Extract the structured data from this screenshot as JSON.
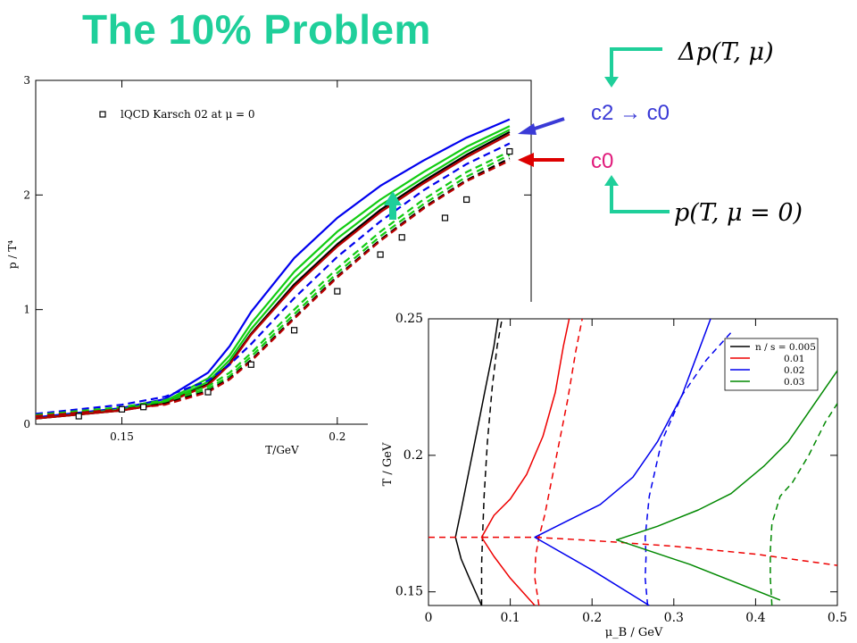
{
  "slide": {
    "title": "The 10% Problem",
    "annotations": {
      "delta_p": "Δp(T, μ)",
      "c2_to_c0": "c2 → c0",
      "c0": "c0",
      "p_mu0": "p(T, μ = 0)"
    },
    "colors": {
      "title": "#1fcf9a",
      "arrow": "#1fcf9a",
      "c2_text": "#3a3ad6",
      "c0_text": "#e0197a",
      "blue_arrow": "#3a3ad6",
      "red_arrow": "#dd0000"
    }
  },
  "chart_data": [
    {
      "type": "line",
      "xlabel": "T/GeV",
      "ylabel": "p / T⁴",
      "xlim": [
        0.13,
        0.245
      ],
      "ylim": [
        0,
        3
      ],
      "xticks": [
        {
          "v": 0.15,
          "label": "0.15"
        },
        {
          "v": 0.2,
          "label": "0.2"
        }
      ],
      "yticks": [
        {
          "v": 0,
          "label": "0"
        },
        {
          "v": 1,
          "label": "1"
        },
        {
          "v": 2,
          "label": "2"
        },
        {
          "v": 3,
          "label": "3"
        }
      ],
      "legend": {
        "label": "lQCD Karsch 02 at μ = 0",
        "position": "top-left"
      },
      "markers": {
        "name": "lQCD Karsch 02 at μ = 0",
        "x": [
          0.14,
          0.15,
          0.155,
          0.17,
          0.18,
          0.19,
          0.2,
          0.21,
          0.215,
          0.225,
          0.23,
          0.24
        ],
        "y": [
          0.07,
          0.13,
          0.15,
          0.28,
          0.52,
          0.82,
          1.16,
          1.48,
          1.63,
          1.8,
          1.96,
          2.38
        ]
      },
      "series": [
        {
          "color": "#0000ee",
          "dash": false,
          "x": [
            0.13,
            0.15,
            0.16,
            0.17,
            0.175,
            0.18,
            0.19,
            0.2,
            0.21,
            0.22,
            0.23,
            0.24
          ],
          "y": [
            0.06,
            0.14,
            0.22,
            0.45,
            0.68,
            0.98,
            1.45,
            1.8,
            2.08,
            2.3,
            2.5,
            2.66
          ]
        },
        {
          "color": "#11cc11",
          "dash": false,
          "x": [
            0.13,
            0.15,
            0.16,
            0.17,
            0.175,
            0.18,
            0.19,
            0.2,
            0.21,
            0.22,
            0.23,
            0.24
          ],
          "y": [
            0.05,
            0.13,
            0.2,
            0.4,
            0.6,
            0.88,
            1.33,
            1.68,
            1.96,
            2.2,
            2.42,
            2.6
          ]
        },
        {
          "color": "#11cc11",
          "dash": false,
          "x": [
            0.13,
            0.15,
            0.16,
            0.17,
            0.175,
            0.18,
            0.19,
            0.2,
            0.21,
            0.22,
            0.23,
            0.24
          ],
          "y": [
            0.05,
            0.12,
            0.19,
            0.37,
            0.56,
            0.83,
            1.27,
            1.62,
            1.91,
            2.15,
            2.38,
            2.57
          ]
        },
        {
          "color": "#000000",
          "dash": false,
          "x": [
            0.13,
            0.15,
            0.16,
            0.17,
            0.175,
            0.18,
            0.19,
            0.2,
            0.21,
            0.22,
            0.23,
            0.24
          ],
          "y": [
            0.05,
            0.12,
            0.18,
            0.35,
            0.53,
            0.79,
            1.22,
            1.57,
            1.87,
            2.12,
            2.35,
            2.55
          ]
        },
        {
          "color": "#bb0000",
          "dash": false,
          "x": [
            0.13,
            0.15,
            0.16,
            0.17,
            0.175,
            0.18,
            0.19,
            0.2,
            0.21,
            0.22,
            0.23,
            0.24
          ],
          "y": [
            0.05,
            0.12,
            0.18,
            0.34,
            0.52,
            0.78,
            1.2,
            1.55,
            1.85,
            2.1,
            2.33,
            2.53
          ]
        },
        {
          "color": "#0000ee",
          "dash": true,
          "x": [
            0.13,
            0.15,
            0.16,
            0.17,
            0.175,
            0.18,
            0.19,
            0.2,
            0.21,
            0.22,
            0.23,
            0.24
          ],
          "y": [
            0.09,
            0.17,
            0.24,
            0.38,
            0.52,
            0.7,
            1.1,
            1.46,
            1.77,
            2.04,
            2.27,
            2.45
          ]
        },
        {
          "color": "#11cc11",
          "dash": true,
          "x": [
            0.13,
            0.15,
            0.16,
            0.17,
            0.175,
            0.18,
            0.19,
            0.2,
            0.21,
            0.22,
            0.23,
            0.24
          ],
          "y": [
            0.08,
            0.15,
            0.21,
            0.33,
            0.45,
            0.62,
            1.0,
            1.36,
            1.68,
            1.96,
            2.2,
            2.38
          ]
        },
        {
          "color": "#11cc11",
          "dash": true,
          "x": [
            0.13,
            0.15,
            0.16,
            0.17,
            0.175,
            0.18,
            0.19,
            0.2,
            0.21,
            0.22,
            0.23,
            0.24
          ],
          "y": [
            0.07,
            0.14,
            0.19,
            0.31,
            0.42,
            0.59,
            0.96,
            1.32,
            1.64,
            1.92,
            2.16,
            2.35
          ]
        },
        {
          "color": "#000000",
          "dash": true,
          "x": [
            0.13,
            0.15,
            0.16,
            0.17,
            0.175,
            0.18,
            0.19,
            0.2,
            0.21,
            0.22,
            0.23,
            0.24
          ],
          "y": [
            0.07,
            0.13,
            0.18,
            0.29,
            0.4,
            0.56,
            0.93,
            1.29,
            1.61,
            1.89,
            2.13,
            2.32
          ]
        },
        {
          "color": "#bb0000",
          "dash": true,
          "x": [
            0.13,
            0.15,
            0.16,
            0.17,
            0.175,
            0.18,
            0.19,
            0.2,
            0.21,
            0.22,
            0.23,
            0.24
          ],
          "y": [
            0.07,
            0.13,
            0.17,
            0.28,
            0.39,
            0.55,
            0.92,
            1.28,
            1.6,
            1.88,
            2.12,
            2.3
          ]
        }
      ]
    },
    {
      "type": "line",
      "xlabel": "μ_B / GeV",
      "ylabel": "T / GeV",
      "xlim": [
        0,
        0.5
      ],
      "ylim": [
        0.145,
        0.25
      ],
      "xticks": [
        {
          "v": 0,
          "label": "0"
        },
        {
          "v": 0.1,
          "label": "0.1"
        },
        {
          "v": 0.2,
          "label": "0.2"
        },
        {
          "v": 0.3,
          "label": "0.3"
        },
        {
          "v": 0.4,
          "label": "0.4"
        },
        {
          "v": 0.5,
          "label": "0.5"
        }
      ],
      "yticks": [
        {
          "v": 0.15,
          "label": "0.15"
        },
        {
          "v": 0.2,
          "label": "0.2"
        },
        {
          "v": 0.25,
          "label": "0.25"
        }
      ],
      "legend": {
        "position": "top-right",
        "items": [
          {
            "label": "n / s = 0.005",
            "color": "#000000"
          },
          {
            "label": "0.01",
            "color": "#ee0000"
          },
          {
            "label": "0.02",
            "color": "#0000ee"
          },
          {
            "label": "0.03",
            "color": "#008800"
          }
        ]
      },
      "series": [
        {
          "color": "#000000",
          "dash": false,
          "x": [
            0.065,
            0.05,
            0.04,
            0.033,
            0.04,
            0.05,
            0.06,
            0.07,
            0.08,
            0.085
          ],
          "y": [
            0.145,
            0.155,
            0.162,
            0.17,
            0.18,
            0.195,
            0.21,
            0.225,
            0.24,
            0.25
          ]
        },
        {
          "color": "#000000",
          "dash": true,
          "x": [
            0.065,
            0.065,
            0.066,
            0.068,
            0.072,
            0.078,
            0.084,
            0.09
          ],
          "y": [
            0.145,
            0.16,
            0.17,
            0.185,
            0.205,
            0.225,
            0.24,
            0.25
          ]
        },
        {
          "color": "#ee0000",
          "dash": false,
          "x": [
            0.13,
            0.1,
            0.08,
            0.065,
            0.08,
            0.1,
            0.12,
            0.14,
            0.155,
            0.165,
            0.172
          ],
          "y": [
            0.145,
            0.155,
            0.163,
            0.17,
            0.178,
            0.184,
            0.193,
            0.207,
            0.223,
            0.24,
            0.25
          ]
        },
        {
          "color": "#ee0000",
          "dash": true,
          "x": [
            0.0,
            0.065,
            0.13,
            0.2,
            0.3,
            0.4,
            0.5
          ],
          "y": [
            0.17,
            0.17,
            0.17,
            0.1688,
            0.1667,
            0.1638,
            0.1597
          ]
        },
        {
          "color": "#ee0000",
          "dash": true,
          "x": [
            0.135,
            0.13,
            0.131,
            0.135,
            0.142,
            0.15,
            0.16,
            0.17,
            0.18,
            0.188
          ],
          "y": [
            0.145,
            0.155,
            0.163,
            0.17,
            0.178,
            0.19,
            0.205,
            0.22,
            0.238,
            0.25
          ]
        },
        {
          "color": "#0000ee",
          "dash": false,
          "x": [
            0.27,
            0.2,
            0.13,
            0.17,
            0.21,
            0.25,
            0.28,
            0.31,
            0.33,
            0.345
          ],
          "y": [
            0.145,
            0.158,
            0.17,
            0.176,
            0.182,
            0.192,
            0.205,
            0.222,
            0.238,
            0.25
          ]
        },
        {
          "color": "#0000ee",
          "dash": true,
          "x": [
            0.268,
            0.265,
            0.266,
            0.265,
            0.27,
            0.285,
            0.31,
            0.34,
            0.37
          ],
          "y": [
            0.145,
            0.155,
            0.163,
            0.17,
            0.185,
            0.205,
            0.222,
            0.235,
            0.245
          ]
        },
        {
          "color": "#008800",
          "dash": false,
          "x": [
            0.43,
            0.32,
            0.23,
            0.28,
            0.33,
            0.37,
            0.41,
            0.44,
            0.47,
            0.5
          ],
          "y": [
            0.147,
            0.16,
            0.169,
            0.174,
            0.18,
            0.186,
            0.196,
            0.205,
            0.218,
            0.231
          ]
        },
        {
          "color": "#008800",
          "dash": true,
          "x": [
            0.42,
            0.418,
            0.418,
            0.42,
            0.43,
            0.445,
            0.465,
            0.485,
            0.5
          ],
          "y": [
            0.145,
            0.155,
            0.165,
            0.175,
            0.185,
            0.19,
            0.2,
            0.212,
            0.219
          ]
        }
      ]
    }
  ]
}
